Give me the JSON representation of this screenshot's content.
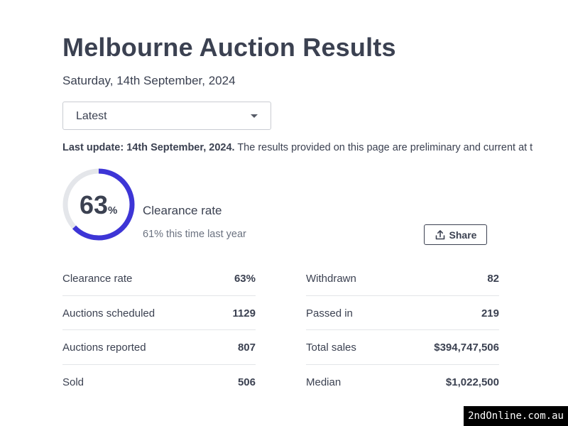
{
  "header": {
    "title": "Melbourne Auction Results",
    "date": "Saturday, 14th September, 2024"
  },
  "filter": {
    "selected": "Latest"
  },
  "update": {
    "bold": "Last update: 14th September, 2024.",
    "text": " The results provided on this page are preliminary and current at t"
  },
  "summary": {
    "rate_value": "63",
    "rate_unit": "%",
    "rate_fraction": 0.63,
    "label": "Clearance rate",
    "previous": "61% this time last year",
    "share_label": "Share",
    "accent_color": "#3d35d6",
    "track_color": "#e4e6ea"
  },
  "stats_left": [
    {
      "label": "Clearance rate",
      "value": "63%"
    },
    {
      "label": "Auctions scheduled",
      "value": "1129"
    },
    {
      "label": "Auctions reported",
      "value": "807"
    },
    {
      "label": "Sold",
      "value": "506"
    }
  ],
  "stats_right": [
    {
      "label": "Withdrawn",
      "value": "82"
    },
    {
      "label": "Passed in",
      "value": "219"
    },
    {
      "label": "Total sales",
      "value": "$394,747,506"
    },
    {
      "label": "Median",
      "value": "$1,022,500"
    }
  ],
  "watermark": "2ndOnline.com.au"
}
